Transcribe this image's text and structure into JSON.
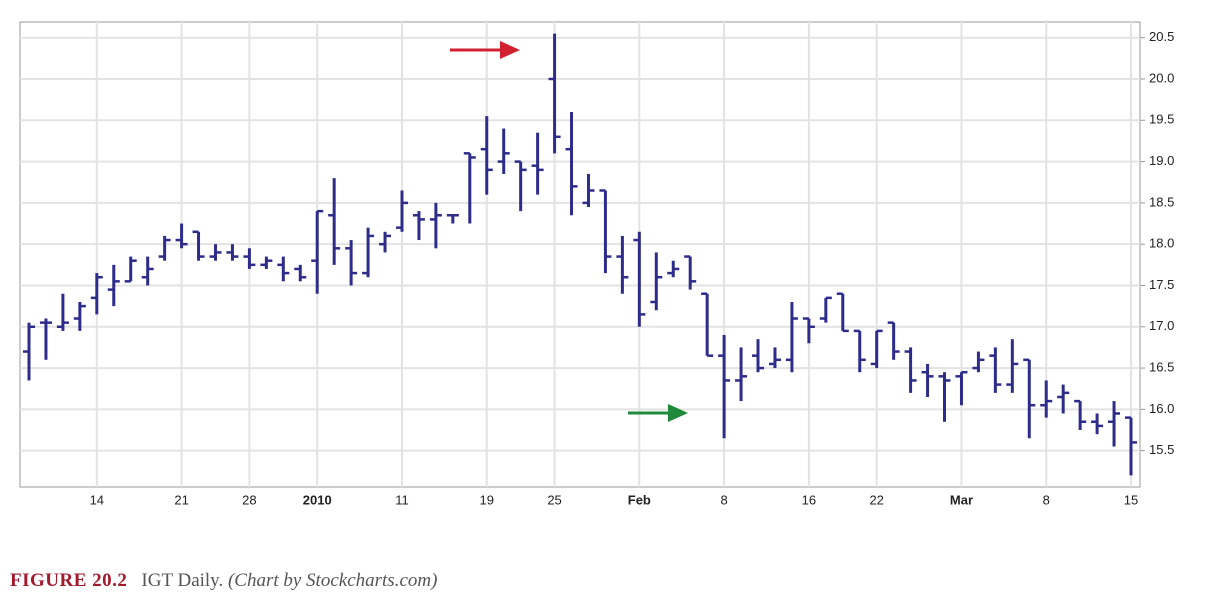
{
  "chart_data": {
    "type": "ohlc",
    "color": "#2e2c8a",
    "categories": [
      null,
      null,
      null,
      null,
      "14",
      null,
      null,
      null,
      null,
      "21",
      null,
      null,
      null,
      "28",
      null,
      null,
      null,
      "2010",
      null,
      null,
      null,
      null,
      "11",
      null,
      null,
      null,
      null,
      "19",
      null,
      null,
      null,
      "25",
      null,
      null,
      null,
      null,
      "Feb",
      null,
      null,
      null,
      null,
      "8",
      null,
      null,
      null,
      null,
      "16",
      null,
      null,
      null,
      "22",
      null,
      null,
      null,
      null,
      "Mar",
      null,
      null,
      null,
      null,
      "8",
      null,
      null,
      null,
      null,
      "15"
    ],
    "open": [
      16.7,
      17.05,
      17.0,
      17.1,
      17.35,
      17.45,
      17.55,
      17.6,
      17.85,
      18.05,
      18.15,
      17.85,
      17.9,
      17.85,
      17.75,
      17.75,
      17.7,
      17.8,
      18.35,
      17.95,
      17.65,
      18.0,
      18.2,
      18.35,
      18.3,
      18.35,
      19.1,
      19.15,
      19.0,
      19.0,
      18.95,
      20.0,
      19.15,
      18.5,
      18.65,
      17.85,
      18.05,
      17.3,
      17.65,
      17.85,
      17.4,
      16.65,
      16.35,
      16.65,
      16.55,
      16.6,
      17.1,
      17.1,
      17.4,
      16.95,
      16.55,
      17.05,
      16.7,
      16.45,
      16.4,
      16.4,
      16.5,
      16.65,
      16.3,
      16.6,
      16.05,
      16.15,
      16.1,
      15.85,
      15.85,
      15.9
    ],
    "high": [
      17.05,
      17.1,
      17.4,
      17.3,
      17.65,
      17.75,
      17.85,
      17.85,
      18.1,
      18.25,
      18.15,
      18.0,
      18.0,
      17.95,
      17.85,
      17.85,
      17.75,
      18.4,
      18.8,
      18.05,
      18.2,
      18.15,
      18.65,
      18.4,
      18.5,
      18.35,
      19.1,
      19.55,
      19.4,
      19.0,
      19.35,
      20.55,
      19.6,
      18.85,
      18.65,
      18.1,
      18.15,
      17.9,
      17.8,
      17.85,
      17.4,
      16.9,
      16.75,
      16.85,
      16.75,
      17.3,
      17.1,
      17.35,
      17.4,
      16.95,
      16.95,
      17.05,
      16.75,
      16.55,
      16.45,
      16.45,
      16.7,
      16.75,
      16.85,
      16.6,
      16.35,
      16.3,
      16.1,
      15.95,
      16.1,
      15.9
    ],
    "low": [
      16.35,
      16.6,
      16.95,
      16.95,
      17.15,
      17.25,
      17.55,
      17.5,
      17.8,
      17.95,
      17.8,
      17.8,
      17.8,
      17.7,
      17.7,
      17.55,
      17.55,
      17.4,
      17.75,
      17.5,
      17.6,
      17.9,
      18.15,
      18.05,
      17.95,
      18.25,
      18.25,
      18.6,
      18.85,
      18.4,
      18.6,
      19.1,
      18.35,
      18.45,
      17.65,
      17.4,
      17.0,
      17.2,
      17.6,
      17.45,
      16.65,
      15.65,
      16.1,
      16.45,
      16.5,
      16.45,
      16.8,
      17.05,
      16.95,
      16.45,
      16.5,
      16.6,
      16.2,
      16.15,
      15.85,
      16.05,
      16.45,
      16.2,
      16.2,
      15.65,
      15.9,
      15.95,
      15.75,
      15.7,
      15.55,
      15.2
    ],
    "close": [
      17.0,
      17.05,
      17.05,
      17.25,
      17.6,
      17.55,
      17.8,
      17.7,
      18.05,
      18.0,
      17.85,
      17.9,
      17.85,
      17.75,
      17.8,
      17.65,
      17.6,
      18.4,
      17.95,
      17.65,
      18.1,
      18.1,
      18.5,
      18.3,
      18.35,
      18.35,
      19.05,
      18.9,
      19.1,
      18.9,
      18.9,
      19.3,
      18.7,
      18.65,
      17.85,
      17.6,
      17.15,
      17.6,
      17.7,
      17.55,
      16.65,
      16.35,
      16.4,
      16.5,
      16.6,
      17.1,
      17.0,
      17.35,
      16.95,
      16.6,
      16.95,
      16.7,
      16.35,
      16.4,
      16.35,
      16.45,
      16.6,
      16.3,
      16.55,
      16.05,
      16.1,
      16.2,
      15.85,
      15.8,
      15.95,
      15.6
    ],
    "ylim": [
      15.06,
      20.69
    ],
    "yticks": [
      15.5,
      {
        "value": 16,
        "label": "16.0"
      },
      16.5,
      {
        "value": 17,
        "label": "17.0"
      },
      17.5,
      {
        "value": 18,
        "label": "18.0"
      },
      18.5,
      {
        "value": 19,
        "label": "19.0"
      },
      19.5,
      {
        "value": 20,
        "label": "20.0"
      },
      20.5
    ],
    "grid": true
  },
  "caption": {
    "label": "FIGURE 20.2",
    "title": "IGT Daily.",
    "credit": "(Chart by Stockcharts.com)"
  }
}
